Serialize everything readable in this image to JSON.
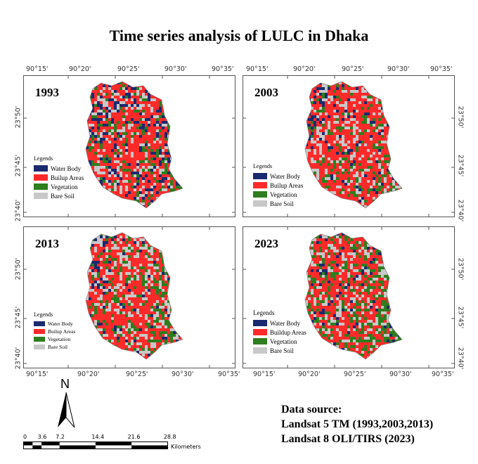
{
  "title": "Time series analysis of LULC in Dhaka",
  "top_ticks": [
    "90°15'",
    "90°20'",
    "90°25'",
    "90°30'",
    "90°35'"
  ],
  "bottom_ticks": [
    "90°15'",
    "90°20'",
    "90°25'",
    "90°30'",
    "90°35'"
  ],
  "lat_ticks": [
    "23°50'",
    "23°45'",
    "23°40'"
  ],
  "panels": [
    {
      "year": "1993",
      "legend": {
        "title": "Legends",
        "items": [
          "Water Body",
          "Builup Areas",
          "Vegetation",
          "Bare Soil"
        ]
      }
    },
    {
      "year": "2003",
      "legend": {
        "title": "Legends",
        "items": [
          "Water Body",
          "Builup Areas",
          "Vegetation",
          "Bare Soil"
        ]
      }
    },
    {
      "year": "2013",
      "legend": {
        "title": "Legends",
        "items": [
          "Water Body",
          "Builup Areas",
          "Vegetation",
          "Bare Soil"
        ]
      }
    },
    {
      "year": "2023",
      "legend": {
        "title": "Legends",
        "items": [
          "Water Body",
          "Buildup Areas",
          "Vegetation",
          "Bare Soil"
        ]
      }
    }
  ],
  "colors": {
    "water": "#1a2a6e",
    "builtup": "#ff2a2a",
    "vegetation": "#2e7d1e",
    "bare": "#c8c8c8"
  },
  "north_arrow": "N",
  "scale_bar": {
    "labels": [
      "0",
      "3.6",
      "7.2",
      "14.4",
      "21.6",
      "28.8"
    ],
    "unit": "Kilometers"
  },
  "data_source": {
    "heading": "Data source:",
    "line1": "Landsat 5 TM (1993,2003,2013)",
    "line2": "Landsat 8 OLI/TIRS (2023)"
  }
}
